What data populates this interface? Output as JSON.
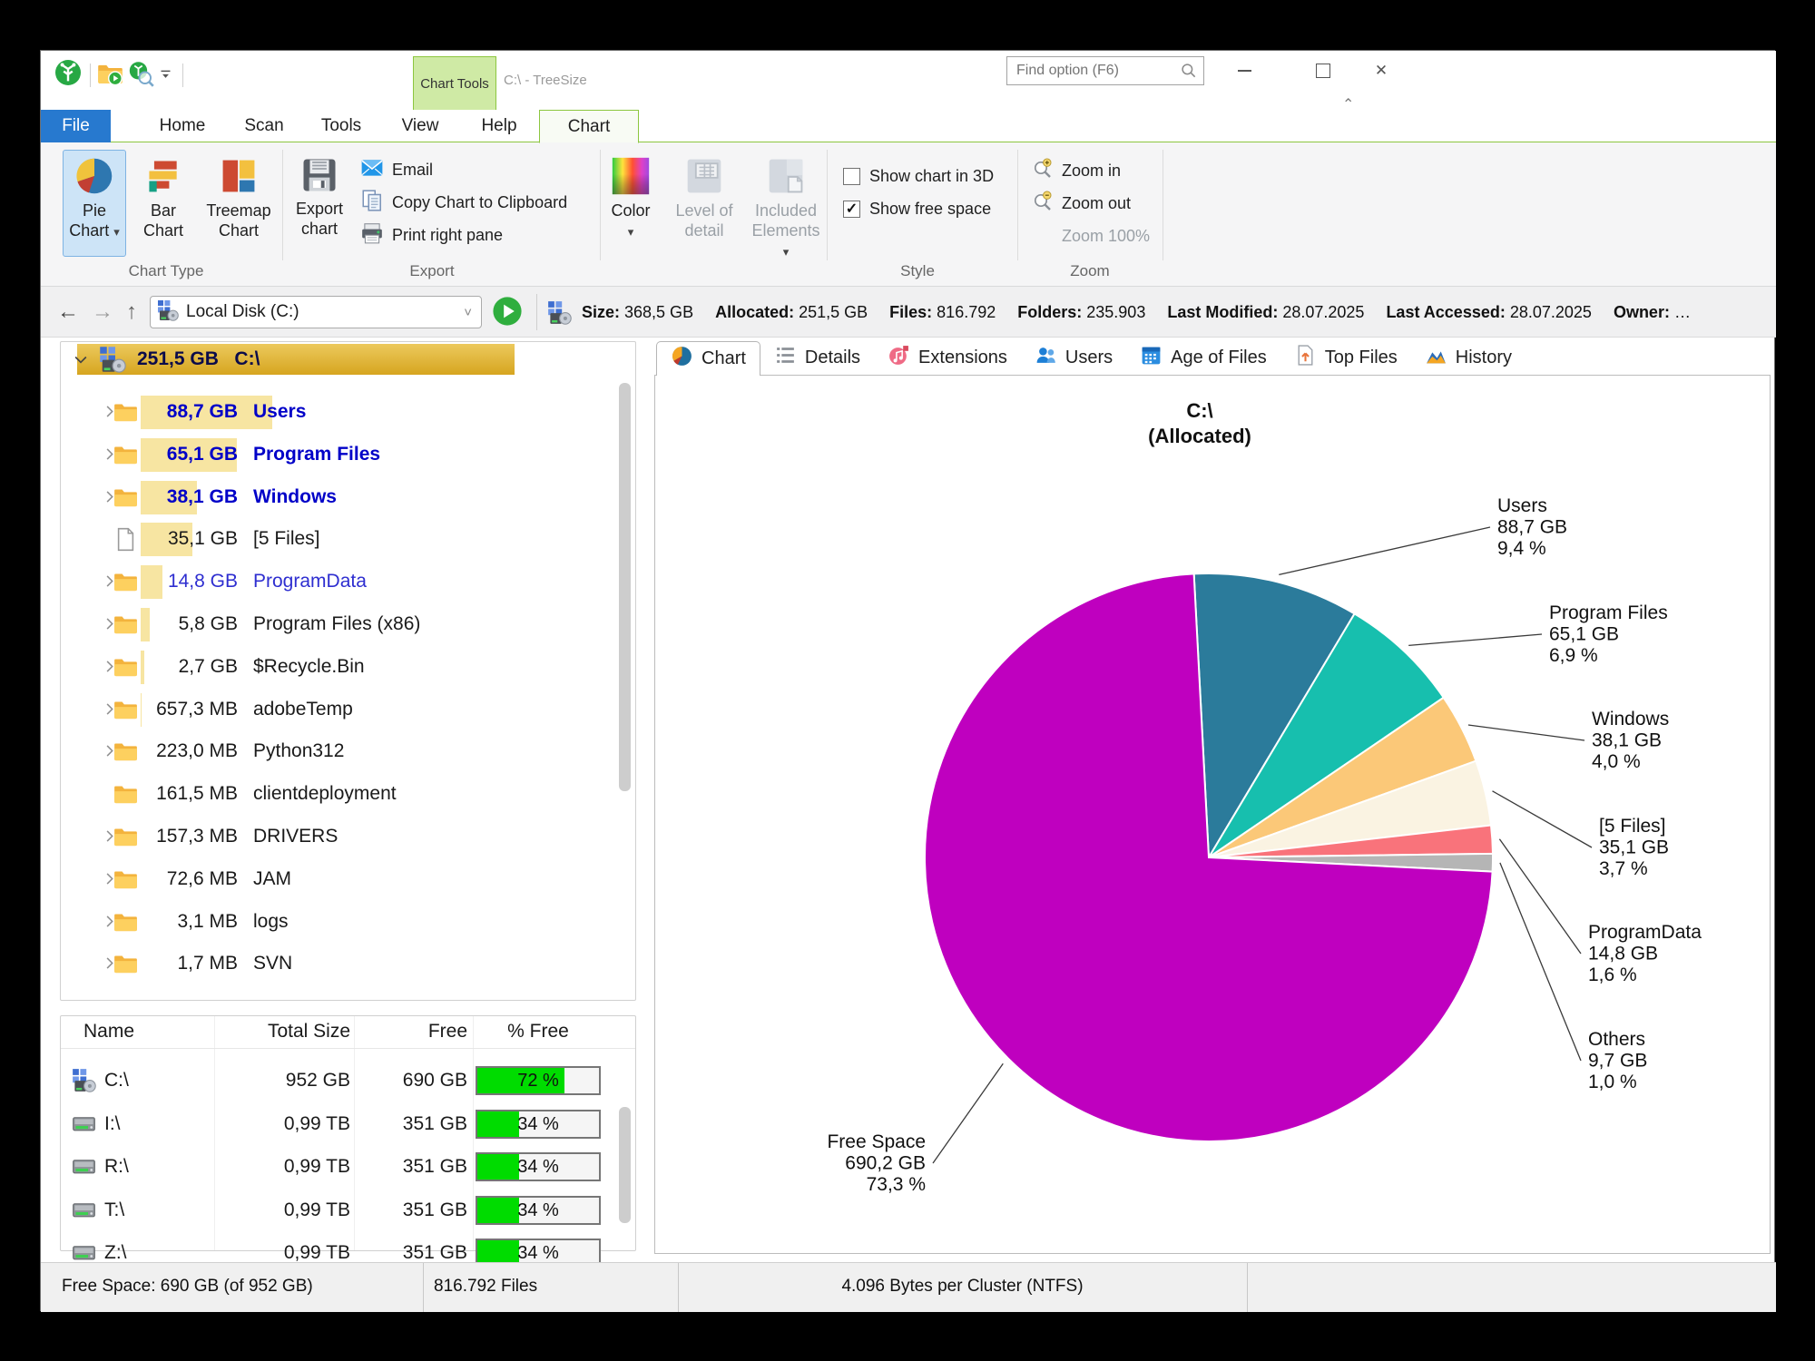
{
  "window": {
    "title": "C:\\ - TreeSize",
    "contextual_tab_label": "Chart Tools",
    "find_box": {
      "placeholder": "Find option (F6)"
    }
  },
  "menu_tabs": [
    {
      "label": "File",
      "style": "file"
    },
    {
      "label": "Home",
      "style": "plain"
    },
    {
      "label": "Scan",
      "style": "plain"
    },
    {
      "label": "Tools",
      "style": "plain"
    },
    {
      "label": "View",
      "style": "plain"
    },
    {
      "label": "Help",
      "style": "plain"
    },
    {
      "label": "Chart",
      "style": "chart",
      "active": true
    }
  ],
  "ribbon": {
    "chart_type": {
      "group_label": "Chart Type",
      "buttons": [
        {
          "line1": "Pie",
          "line2": "Chart",
          "caret": true,
          "icon": "pie-chart",
          "selected": true,
          "disabled": false
        },
        {
          "line1": "Bar",
          "line2": "Chart",
          "caret": false,
          "icon": "bar-chart",
          "selected": false,
          "disabled": false
        },
        {
          "line1": "Treemap",
          "line2": "Chart",
          "caret": false,
          "icon": "treemap-chart",
          "selected": false,
          "disabled": false
        }
      ]
    },
    "export": {
      "group_label": "Export",
      "big_button": {
        "line1": "Export",
        "line2": "chart",
        "icon": "floppy-disk"
      },
      "items": [
        {
          "label": "Email",
          "icon": "email"
        },
        {
          "label": "Copy Chart to Clipboard",
          "icon": "copy"
        },
        {
          "label": "Print right pane",
          "icon": "printer"
        }
      ]
    },
    "display": {
      "buttons": [
        {
          "line1": "Color",
          "line2": "",
          "caret": true,
          "icon": "color-spectrum",
          "disabled": false
        },
        {
          "line1": "Level of",
          "line2": "detail",
          "caret": false,
          "icon": "level-of-detail",
          "disabled": true
        },
        {
          "line1": "Included",
          "line2": "Elements",
          "caret": true,
          "icon": "included-elements",
          "disabled": true
        }
      ]
    },
    "style": {
      "group_label": "Style",
      "checkboxes": [
        {
          "label": "Show chart in 3D",
          "checked": false
        },
        {
          "label": "Show free space",
          "checked": true
        }
      ]
    },
    "zoom": {
      "group_label": "Zoom",
      "items": [
        {
          "label": "Zoom in",
          "icon": "zoom-in",
          "disabled": false
        },
        {
          "label": "Zoom out",
          "icon": "zoom-out",
          "disabled": false
        },
        {
          "label": "Zoom 100%",
          "icon": "",
          "disabled": true
        }
      ]
    }
  },
  "address_bar": {
    "path_value": "Local Disk (C:)",
    "stats": [
      {
        "label": "Size:",
        "value": "368,5 GB"
      },
      {
        "label": "Allocated:",
        "value": "251,5 GB"
      },
      {
        "label": "Files:",
        "value": "816.792"
      },
      {
        "label": "Folders:",
        "value": "235.903"
      },
      {
        "label": "Last Modified:",
        "value": "28.07.2025"
      },
      {
        "label": "Last Accessed:",
        "value": "28.07.2025"
      },
      {
        "label": "Owner:",
        "value": "…"
      }
    ]
  },
  "tree": {
    "root": {
      "size": "251,5 GB",
      "name": "C:\\"
    },
    "items": [
      {
        "size": "88,7 GB",
        "name": "Users",
        "gb": 88.7,
        "emph": "bold-blue",
        "chevron": true,
        "icon": "folder"
      },
      {
        "size": "65,1 GB",
        "name": "Program Files",
        "gb": 65.1,
        "emph": "bold-blue",
        "chevron": true,
        "icon": "folder"
      },
      {
        "size": "38,1 GB",
        "name": "Windows",
        "gb": 38.1,
        "emph": "bold-blue",
        "chevron": true,
        "icon": "folder"
      },
      {
        "size": "35,1 GB",
        "name": "[5 Files]",
        "gb": 35.1,
        "emph": "normal",
        "chevron": false,
        "icon": "file"
      },
      {
        "size": "14,8 GB",
        "name": "ProgramData",
        "gb": 14.8,
        "emph": "blue",
        "chevron": true,
        "icon": "folder"
      },
      {
        "size": "5,8 GB",
        "name": "Program Files (x86)",
        "gb": 5.8,
        "emph": "normal",
        "chevron": true,
        "icon": "folder"
      },
      {
        "size": "2,7 GB",
        "name": "$Recycle.Bin",
        "gb": 2.7,
        "emph": "normal",
        "chevron": true,
        "icon": "folder"
      },
      {
        "size": "657,3 MB",
        "name": "adobeTemp",
        "gb": 0.657,
        "emph": "normal",
        "chevron": true,
        "icon": "folder"
      },
      {
        "size": "223,0 MB",
        "name": "Python312",
        "gb": 0.223,
        "emph": "normal",
        "chevron": true,
        "icon": "folder"
      },
      {
        "size": "161,5 MB",
        "name": "clientdeployment",
        "gb": 0.1615,
        "emph": "normal",
        "chevron": false,
        "icon": "folder"
      },
      {
        "size": "157,3 MB",
        "name": "DRIVERS",
        "gb": 0.1573,
        "emph": "normal",
        "chevron": true,
        "icon": "folder"
      },
      {
        "size": "72,6 MB",
        "name": "JAM",
        "gb": 0.0726,
        "emph": "normal",
        "chevron": true,
        "icon": "folder"
      },
      {
        "size": "3,1 MB",
        "name": "logs",
        "gb": 0.0031,
        "emph": "normal",
        "chevron": true,
        "icon": "folder"
      },
      {
        "size": "1,7 MB",
        "name": "SVN",
        "gb": 0.0017,
        "emph": "normal",
        "chevron": true,
        "icon": "folder"
      }
    ]
  },
  "drive_table": {
    "headers": [
      "Name",
      "Total Size",
      "Free",
      "% Free"
    ],
    "rows": [
      {
        "name": "C:\\",
        "total": "952 GB",
        "free": "690 GB",
        "pct_label": "72 %",
        "pct": 72,
        "icon": "drive-c"
      },
      {
        "name": "I:\\",
        "total": "0,99 TB",
        "free": "351 GB",
        "pct_label": "34 %",
        "pct": 34,
        "icon": "drive"
      },
      {
        "name": "R:\\",
        "total": "0,99 TB",
        "free": "351 GB",
        "pct_label": "34 %",
        "pct": 34,
        "icon": "drive"
      },
      {
        "name": "T:\\",
        "total": "0,99 TB",
        "free": "351 GB",
        "pct_label": "34 %",
        "pct": 34,
        "icon": "drive"
      },
      {
        "name": "Z:\\",
        "total": "0,99 TB",
        "free": "351 GB",
        "pct_label": "34 %",
        "pct": 34,
        "icon": "drive"
      }
    ]
  },
  "right_panel": {
    "tabs": [
      {
        "label": "Chart",
        "icon": "tab-pie",
        "active": true
      },
      {
        "label": "Details",
        "icon": "tab-details",
        "active": false
      },
      {
        "label": "Extensions",
        "icon": "tab-extensions",
        "active": false
      },
      {
        "label": "Users",
        "icon": "tab-users",
        "active": false
      },
      {
        "label": "Age of Files",
        "icon": "tab-age",
        "active": false
      },
      {
        "label": "Top Files",
        "icon": "tab-top",
        "active": false
      },
      {
        "label": "History",
        "icon": "tab-history",
        "active": false
      }
    ]
  },
  "chart_data": {
    "type": "pie",
    "title": "C:\\",
    "subtitle": "(Allocated)",
    "unit": "GB",
    "legend_position": "callout-labels",
    "slices": [
      {
        "name": "Users",
        "value_gb": 88.7,
        "size_label": "88,7 GB",
        "pct": 9.4,
        "pct_label": "9,4 %",
        "color": "#2b7b9b"
      },
      {
        "name": "Program Files",
        "value_gb": 65.1,
        "size_label": "65,1 GB",
        "pct": 6.9,
        "pct_label": "6,9 %",
        "color": "#17bfae"
      },
      {
        "name": "Windows",
        "value_gb": 38.1,
        "size_label": "38,1 GB",
        "pct": 4.0,
        "pct_label": "4,0 %",
        "color": "#fbc878"
      },
      {
        "name": "[5 Files]",
        "value_gb": 35.1,
        "size_label": "35,1 GB",
        "pct": 3.7,
        "pct_label": "3,7 %",
        "color": "#faf3e2"
      },
      {
        "name": "ProgramData",
        "value_gb": 14.8,
        "size_label": "14,8 GB",
        "pct": 1.6,
        "pct_label": "1,6 %",
        "color": "#f9737b"
      },
      {
        "name": "Others",
        "value_gb": 9.7,
        "size_label": "9,7 GB",
        "pct": 1.0,
        "pct_label": "1,0 %",
        "color": "#b5b5b5"
      },
      {
        "name": "Free Space",
        "value_gb": 690.2,
        "size_label": "690,2 GB",
        "pct": 73.3,
        "pct_label": "73,3 %",
        "color": "#bf00bf"
      }
    ]
  },
  "status_bar": {
    "segments": [
      "Free Space: 690 GB  (of 952 GB)",
      "816.792 Files",
      "4.096 Bytes per Cluster (NTFS)"
    ]
  }
}
